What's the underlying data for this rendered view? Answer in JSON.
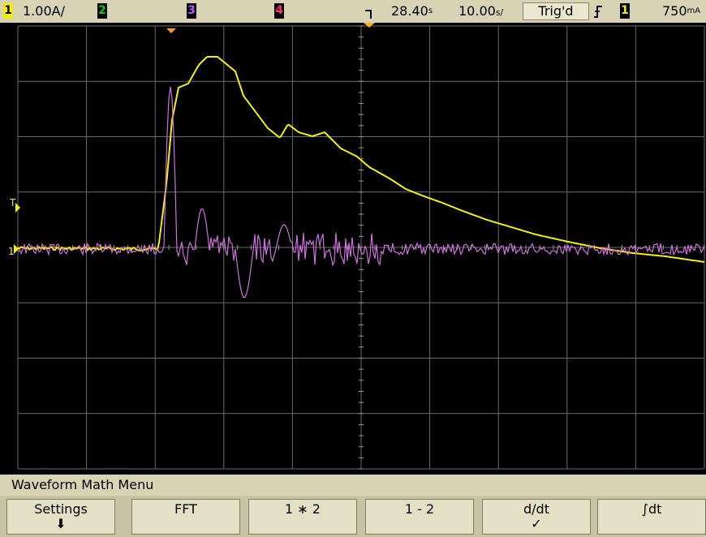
{
  "status_bar": {
    "ch1_label": "1",
    "ch1_scale": "1.00A/",
    "ch2_label": "2",
    "ch3_label": "3",
    "ch4_label": "4",
    "time_delay": "28.40",
    "time_delay_unit": "s",
    "timebase": "10.00",
    "timebase_unit": "s/",
    "trigger_status": "Trig'd",
    "trigger_slope_icon": "rising-edge-icon",
    "trigger_source": "1",
    "trigger_level": "750",
    "trigger_level_unit": "mA",
    "colors": {
      "ch1": "#f5f000",
      "ch2": "#00c000",
      "ch3": "#c050ff",
      "ch4": "#ff3070",
      "math": "#d070e0",
      "bar_bg": "#d8d3b4"
    }
  },
  "menu": {
    "title": "Waveform Math Menu",
    "softkeys": [
      {
        "label": "Settings",
        "sub": "⬇"
      },
      {
        "label": "FFT",
        "sub": ""
      },
      {
        "label": "1 ∗ 2",
        "sub": ""
      },
      {
        "label": "1 - 2",
        "sub": ""
      },
      {
        "label": "d/dt",
        "sub": "✓"
      },
      {
        "label": "∫dt",
        "sub": ""
      }
    ]
  },
  "markers": {
    "trigger_level_marker": "T",
    "ch1_ground_marker": "1"
  }
}
